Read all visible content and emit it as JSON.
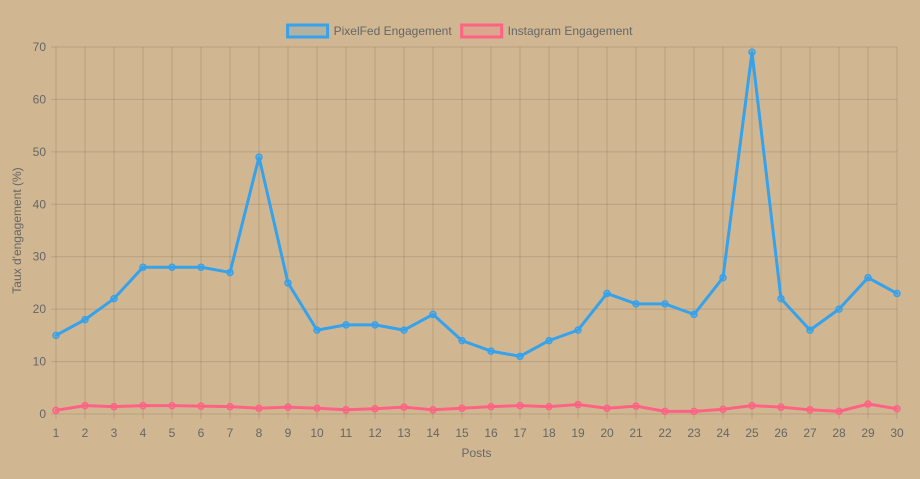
{
  "chart_data": {
    "type": "line",
    "title": "",
    "xlabel": "Posts",
    "ylabel": "Taux d'engagement (%)",
    "x": [
      1,
      2,
      3,
      4,
      5,
      6,
      7,
      8,
      9,
      10,
      11,
      12,
      13,
      14,
      15,
      16,
      17,
      18,
      19,
      20,
      21,
      22,
      23,
      24,
      25,
      26,
      27,
      28,
      29,
      30
    ],
    "x_tick_labels": [
      "1",
      "2",
      "3",
      "4",
      "5",
      "6",
      "7",
      "8",
      "9",
      "10",
      "11",
      "12",
      "13",
      "14",
      "15",
      "16",
      "17",
      "18",
      "19",
      "20",
      "21",
      "22",
      "23",
      "24",
      "25",
      "26",
      "27",
      "28",
      "29",
      "30"
    ],
    "ylim": [
      0,
      70
    ],
    "y_ticks": [
      0,
      10,
      20,
      30,
      40,
      50,
      60,
      70
    ],
    "y_tick_labels": [
      "0",
      "10",
      "20",
      "30",
      "40",
      "50",
      "60",
      "70"
    ],
    "grid": true,
    "legend_position": "top",
    "series": [
      {
        "name": "PixelFed Engagement",
        "color": "#36a2eb",
        "fill": "rgba(54,162,235,0.2)",
        "values": [
          15,
          18,
          22,
          28,
          28,
          28,
          27,
          49,
          25,
          16,
          17,
          17,
          16,
          19,
          14,
          12,
          11,
          14,
          16,
          23,
          21,
          21,
          19,
          26,
          69,
          22,
          16,
          20,
          26,
          23
        ]
      },
      {
        "name": "Instagram Engagement",
        "color": "#ff6384",
        "fill": "rgba(255,99,132,0.2)",
        "values": [
          0.7,
          1.6,
          1.4,
          1.6,
          1.6,
          1.5,
          1.4,
          1.1,
          1.3,
          1.1,
          0.8,
          1.0,
          1.3,
          0.8,
          1.1,
          1.4,
          1.6,
          1.4,
          1.8,
          1.1,
          1.5,
          0.5,
          0.5,
          0.9,
          1.6,
          1.3,
          0.8,
          0.5,
          1.9,
          1.0
        ]
      }
    ]
  }
}
